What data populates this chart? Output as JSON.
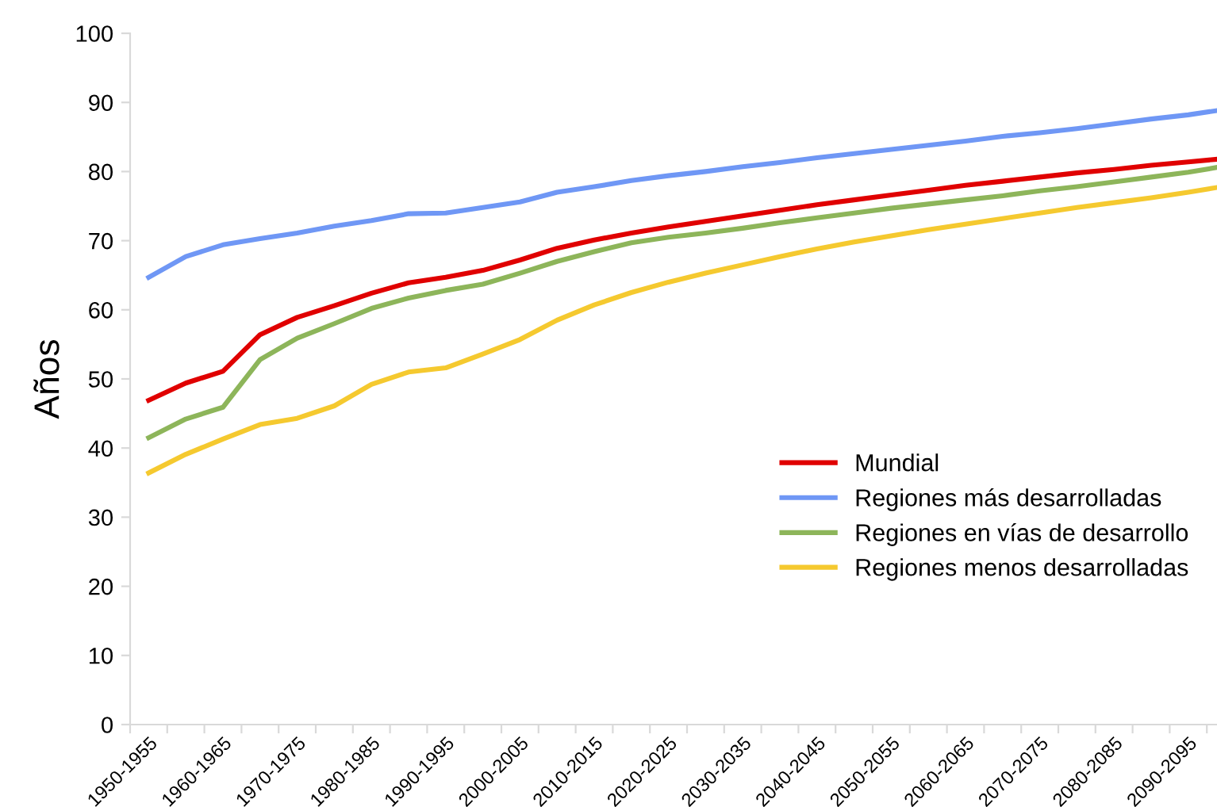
{
  "chart_data": {
    "type": "line",
    "ylabel": "Años",
    "categories": [
      "1950-1955",
      null,
      "1960-1965",
      null,
      "1970-1975",
      null,
      "1980-1985",
      null,
      "1990-1995",
      null,
      "2000-2005",
      null,
      "2010-2015",
      null,
      "2020-2025",
      null,
      "2030-2035",
      null,
      "2040-2045",
      null,
      "2050-2055",
      null,
      "2060-2065",
      null,
      "2070-2075",
      null,
      "2080-2085",
      null,
      "2090-2095",
      null
    ],
    "series": [
      {
        "name": "Mundial",
        "color": "#e00000",
        "values": [
          46.9,
          49.4,
          51.1,
          56.4,
          58.9,
          60.6,
          62.4,
          63.9,
          64.7,
          65.7,
          67.2,
          68.9,
          70.1,
          71.1,
          72.0,
          72.8,
          73.6,
          74.4,
          75.2,
          75.9,
          76.6,
          77.3,
          78.0,
          78.6,
          79.2,
          79.8,
          80.3,
          80.9,
          81.4,
          81.9
        ]
      },
      {
        "name": "Regiones más desarrolladas",
        "color": "#6f97f5",
        "values": [
          64.7,
          67.7,
          69.4,
          70.3,
          71.1,
          72.1,
          72.9,
          73.9,
          74.0,
          74.8,
          75.6,
          77.0,
          77.8,
          78.7,
          79.4,
          80.0,
          80.7,
          81.3,
          82.0,
          82.6,
          83.2,
          83.8,
          84.4,
          85.1,
          85.6,
          86.2,
          86.9,
          87.6,
          88.2,
          89.0
        ]
      },
      {
        "name": "Regiones en vías de desarrollo",
        "color": "#8db55a",
        "values": [
          41.5,
          44.2,
          45.9,
          52.8,
          55.9,
          58.0,
          60.2,
          61.7,
          62.8,
          63.7,
          65.3,
          67.0,
          68.4,
          69.7,
          70.5,
          71.1,
          71.8,
          72.6,
          73.3,
          74.0,
          74.7,
          75.3,
          75.9,
          76.5,
          77.2,
          77.8,
          78.5,
          79.2,
          79.9,
          80.8
        ]
      },
      {
        "name": "Regiones menos desarrolladas",
        "color": "#f5c92f",
        "values": [
          36.4,
          39.1,
          41.3,
          43.4,
          44.3,
          46.1,
          49.2,
          51.0,
          51.6,
          53.6,
          55.7,
          58.5,
          60.7,
          62.5,
          64.0,
          65.3,
          66.5,
          67.7,
          68.8,
          69.8,
          70.7,
          71.6,
          72.4,
          73.2,
          74.0,
          74.8,
          75.5,
          76.2,
          77.0,
          77.9
        ]
      }
    ],
    "ylim": [
      0,
      100
    ],
    "yticks": [
      0,
      10,
      20,
      30,
      40,
      50,
      60,
      70,
      80,
      90,
      100
    ],
    "grid": false,
    "legend": "right",
    "marker": "none",
    "line_style": "solid"
  }
}
